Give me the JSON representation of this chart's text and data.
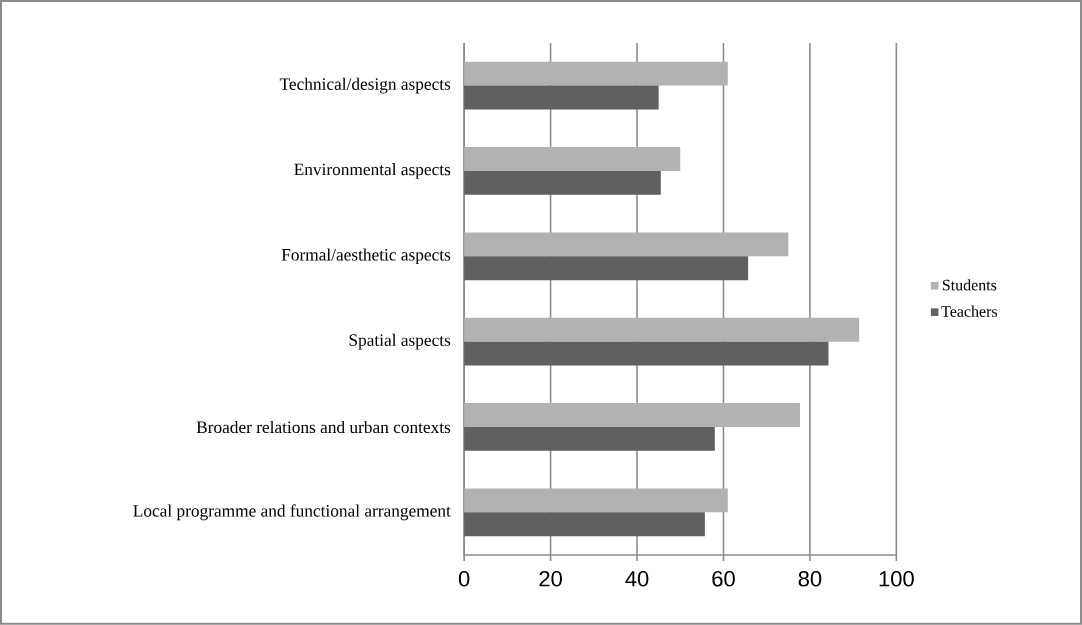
{
  "chart_data": {
    "type": "bar",
    "orientation": "horizontal",
    "categories": [
      "Technical/design aspects",
      "Environmental aspects",
      "Formal/aesthetic aspects",
      "Spatial aspects",
      "Broader relations and urban contexts",
      "Local programme and functional arrangement"
    ],
    "series": [
      {
        "name": "Students",
        "color": "#b2b2b2",
        "values": [
          61,
          50,
          75,
          91.4,
          77.7,
          61
        ]
      },
      {
        "name": "Teachers",
        "color": "#606060",
        "values": [
          45,
          45.5,
          65.7,
          84.3,
          58,
          55.7
        ]
      }
    ],
    "xlim": [
      0,
      100
    ],
    "xticks": [
      0,
      20,
      40,
      60,
      80,
      100
    ],
    "grid": "x",
    "legend": "right"
  }
}
